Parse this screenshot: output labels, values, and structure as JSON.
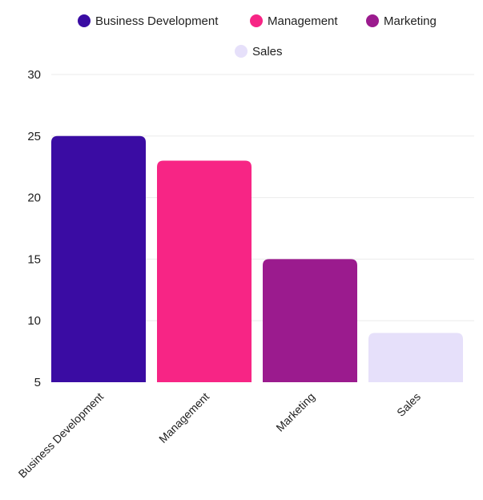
{
  "chart_data": {
    "type": "bar",
    "title": "",
    "xlabel": "",
    "ylabel": "",
    "categories": [
      "Business Development",
      "Management",
      "Marketing",
      "Sales"
    ],
    "values": [
      25,
      23,
      15,
      9
    ],
    "colors": [
      "#3a0ca3",
      "#f72585",
      "#9b1b8e",
      "#e6e0fa"
    ],
    "ylim": [
      5,
      30
    ],
    "yticks": [
      5,
      10,
      15,
      20,
      25,
      30
    ],
    "grid": true,
    "legend": {
      "placement": "top-center",
      "entries": [
        "Business Development",
        "Management",
        "Marketing",
        "Sales"
      ]
    }
  }
}
